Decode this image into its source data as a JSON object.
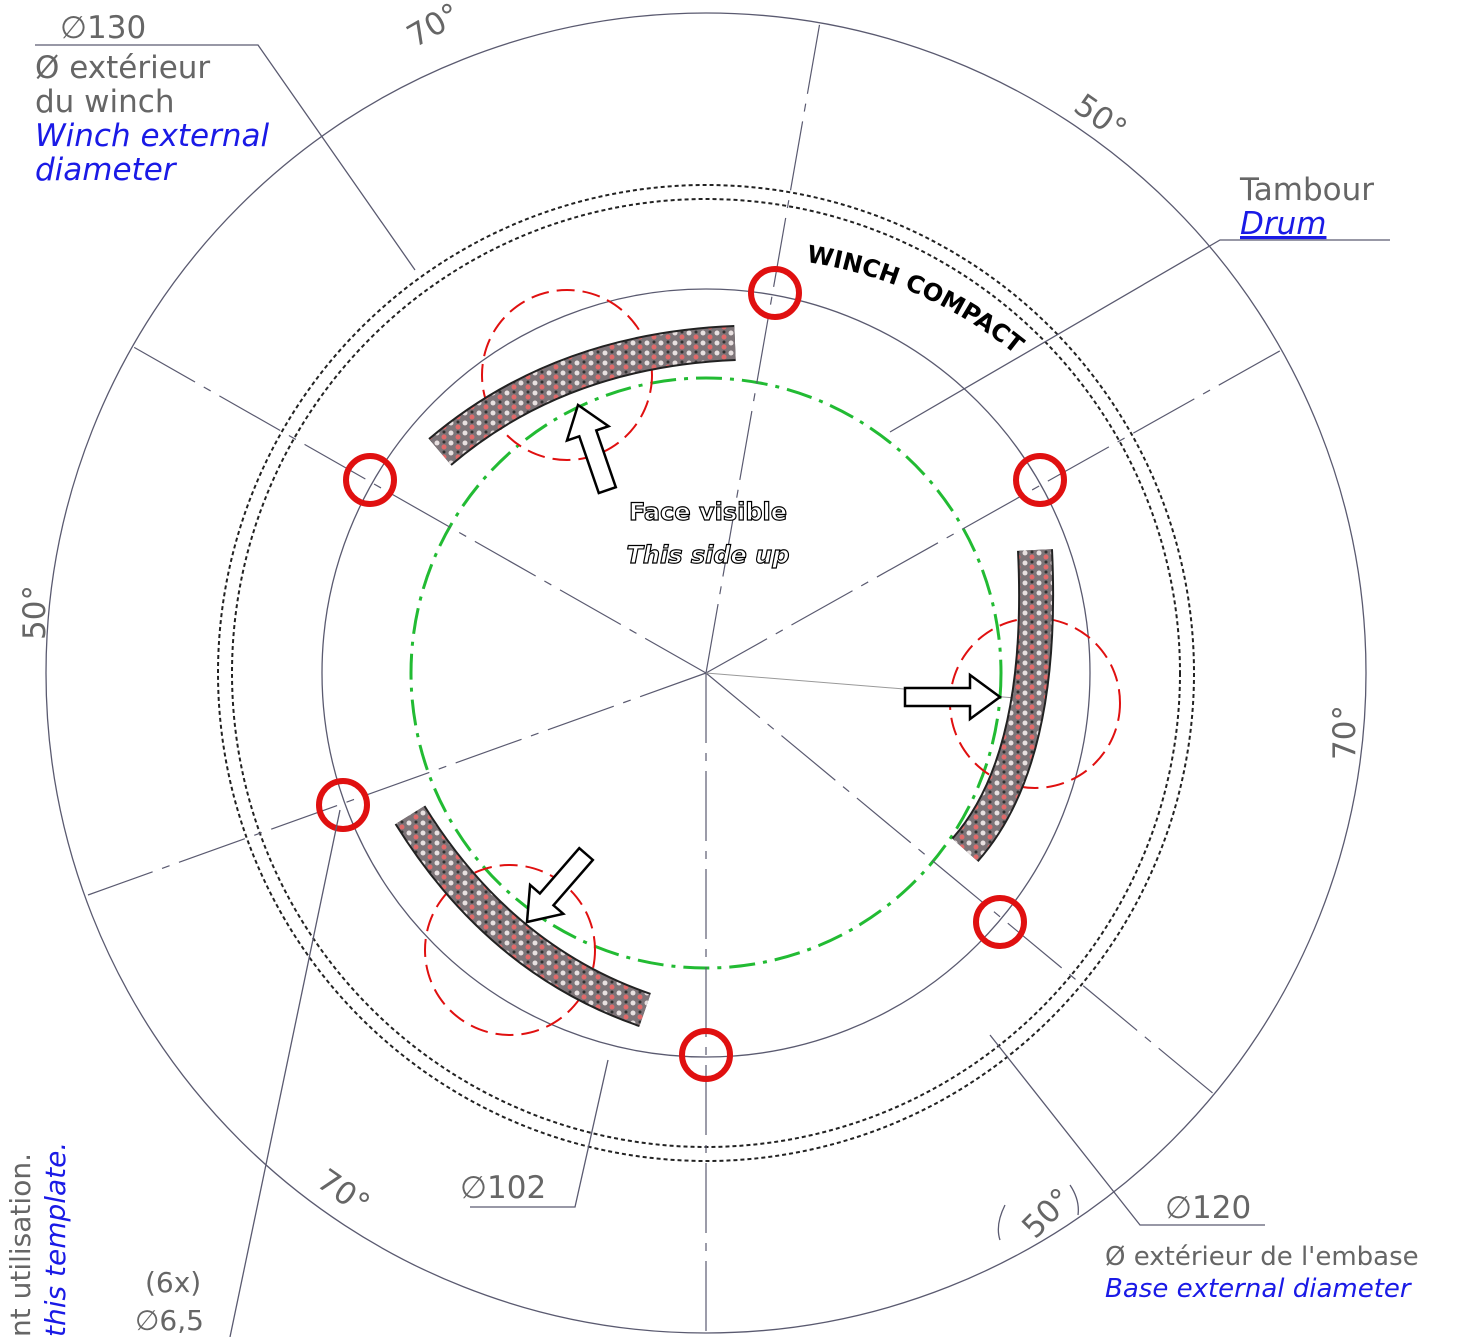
{
  "outer_diameter": {
    "dimension": "∅130",
    "label_fr": [
      "Ø extérieur",
      "du winch"
    ],
    "label_en": [
      "Winch external",
      "diameter"
    ]
  },
  "drum": {
    "label_fr": "Tambour",
    "label_en": "Drum"
  },
  "brand": "WINCH COMPACT",
  "orientation": {
    "label_fr": "Face visible",
    "label_en": "This side up"
  },
  "inner_diameter": {
    "dimension": "∅102"
  },
  "base_diameter": {
    "dimension": "∅120",
    "label_fr": "Ø extérieur de l'embase",
    "label_en": "Base external diameter"
  },
  "holes": {
    "count": "(6x)",
    "dimension": "∅6,5"
  },
  "angles": [
    "70°",
    "50°",
    "50°",
    "70°",
    "70°",
    "50°"
  ],
  "side_note": {
    "label_fr": "nt utilisation.",
    "label_en": "this template."
  }
}
